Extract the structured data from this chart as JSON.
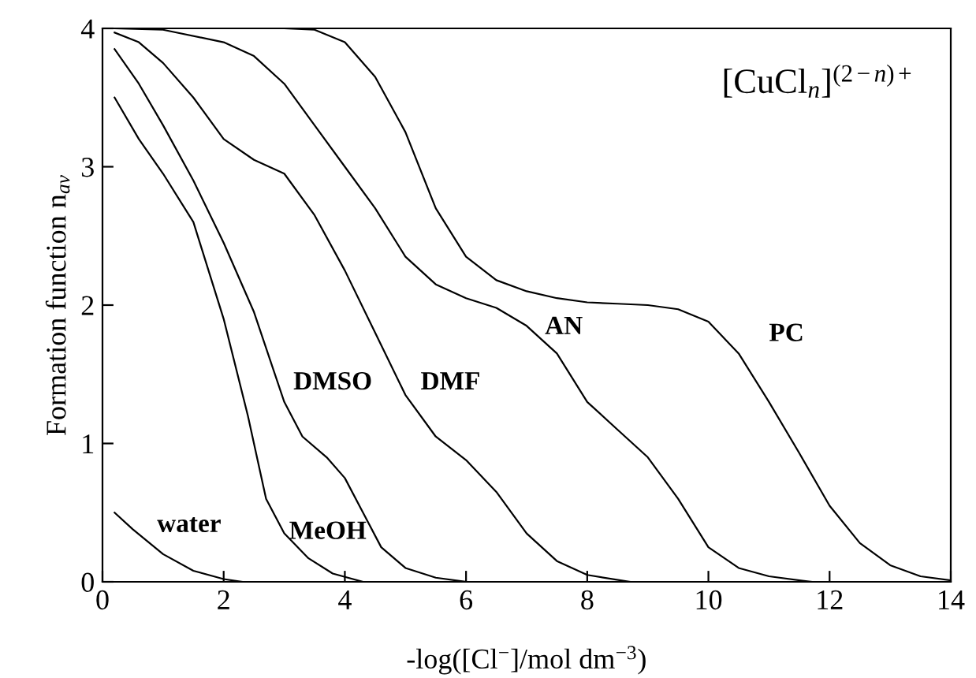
{
  "chart_data": {
    "type": "line",
    "xlabel": "-log([Cl$^{−}$]/mol dm$^{−3}$)",
    "ylabel": "Formation function n$_{av}$",
    "annotations": [
      "[CuCl$_{n}$]$^{(2−n)+}$"
    ],
    "xlim": [
      0,
      14
    ],
    "ylim": [
      0,
      4
    ],
    "xticks": [
      0,
      2,
      4,
      6,
      8,
      10,
      12,
      14
    ],
    "yticks": [
      0,
      1,
      2,
      3,
      4
    ],
    "grid": false,
    "legend": false,
    "marker": "none",
    "line_style": "solid",
    "series": [
      {
        "name": "water",
        "color": "#000000",
        "x": [
          0.2,
          0.5,
          1.0,
          1.5,
          2.0,
          2.3
        ],
        "values": [
          0.5,
          0.38,
          0.2,
          0.08,
          0.02,
          0
        ]
      },
      {
        "name": "MeOH",
        "color": "#000000",
        "x": [
          0.2,
          0.6,
          1.0,
          1.5,
          2.0,
          2.4,
          2.7,
          3.0,
          3.4,
          3.8,
          4.3
        ],
        "values": [
          3.5,
          3.2,
          2.95,
          2.6,
          1.9,
          1.2,
          0.6,
          0.35,
          0.17,
          0.06,
          0
        ]
      },
      {
        "name": "DMSO",
        "color": "#000000",
        "x": [
          0.2,
          0.6,
          1.0,
          1.5,
          2.0,
          2.5,
          3.0,
          3.3,
          3.7,
          4.0,
          4.3,
          4.6,
          5.0,
          5.5,
          6.0
        ],
        "values": [
          3.85,
          3.6,
          3.3,
          2.9,
          2.45,
          1.95,
          1.3,
          1.05,
          0.9,
          0.75,
          0.5,
          0.25,
          0.1,
          0.03,
          0
        ]
      },
      {
        "name": "DMF",
        "color": "#000000",
        "x": [
          0.2,
          0.6,
          1.0,
          1.5,
          2.0,
          2.5,
          3.0,
          3.5,
          4.0,
          4.5,
          5.0,
          5.5,
          6.0,
          6.5,
          7.0,
          7.5,
          8.0,
          8.7
        ],
        "values": [
          3.97,
          3.9,
          3.75,
          3.5,
          3.2,
          3.05,
          2.95,
          2.65,
          2.25,
          1.8,
          1.35,
          1.05,
          0.88,
          0.65,
          0.35,
          0.15,
          0.05,
          0
        ]
      },
      {
        "name": "AN",
        "color": "#000000",
        "x": [
          0.2,
          1,
          2,
          2.5,
          3,
          3.5,
          4,
          4.5,
          5,
          5.5,
          6,
          6.5,
          7,
          7.5,
          8,
          8.5,
          9,
          9.5,
          10,
          10.5,
          11,
          11.7
        ],
        "values": [
          4.0,
          3.99,
          3.9,
          3.8,
          3.6,
          3.3,
          3.0,
          2.7,
          2.35,
          2.15,
          2.05,
          1.98,
          1.85,
          1.65,
          1.3,
          1.1,
          0.9,
          0.6,
          0.25,
          0.1,
          0.04,
          0
        ]
      },
      {
        "name": "PC",
        "color": "#000000",
        "x": [
          0.2,
          2,
          3,
          3.5,
          4,
          4.5,
          5,
          5.5,
          6,
          6.5,
          7,
          7.5,
          8,
          8.5,
          9,
          9.5,
          10,
          10.5,
          11,
          11.5,
          12,
          12.5,
          13,
          13.5,
          14
        ],
        "values": [
          4.0,
          4.0,
          4.0,
          3.99,
          3.9,
          3.65,
          3.25,
          2.7,
          2.35,
          2.18,
          2.1,
          2.05,
          2.02,
          2.01,
          2.0,
          1.97,
          1.88,
          1.65,
          1.3,
          0.93,
          0.55,
          0.28,
          0.12,
          0.04,
          0.01
        ]
      }
    ]
  }
}
